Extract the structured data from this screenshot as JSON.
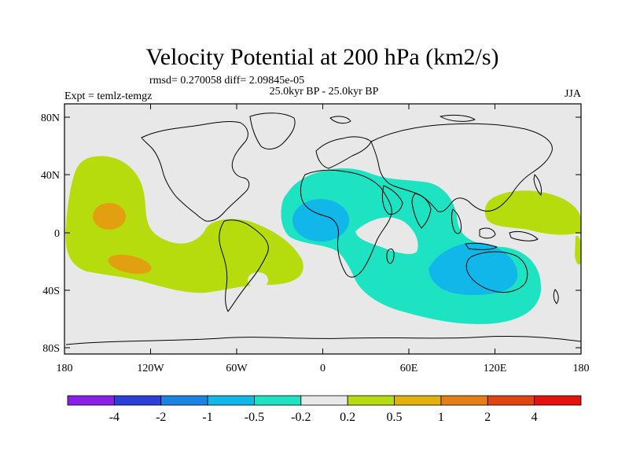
{
  "title": "Velocity Potential at 200 hPa (km2/s)",
  "stats": "rmsd= 0.270058 diff= 2.09845e-05",
  "experiment": "Expt = temlz-temgz",
  "period": "25.0kyr BP - 25.0kyr BP",
  "season": "JJA",
  "y_ticks": [
    "80N",
    "40N",
    "0",
    "40S",
    "80S"
  ],
  "x_ticks": [
    "180",
    "120W",
    "60W",
    "0",
    "60E",
    "120E",
    "180"
  ],
  "colorbar": {
    "labels": [
      "-4",
      "-2",
      "-1",
      "-0.5",
      "-0.2",
      "0.2",
      "0.5",
      "1",
      "2",
      "4"
    ],
    "colors": [
      "#8c1eea",
      "#2b3ed9",
      "#1a84e3",
      "#11b7e9",
      "#1ee3c2",
      "#e8e8e8",
      "#b7dc0e",
      "#e2b10f",
      "#e67e17",
      "#e24311",
      "#e6110e"
    ]
  },
  "map_colors": {
    "background": "#e8e8e8",
    "positive_weak": "#b7dc0e",
    "positive_mid": "#e2a010",
    "positive_strong": "#e67e17",
    "negative_weak": "#1ee3c2",
    "negative_mid": "#11b7e9"
  }
}
